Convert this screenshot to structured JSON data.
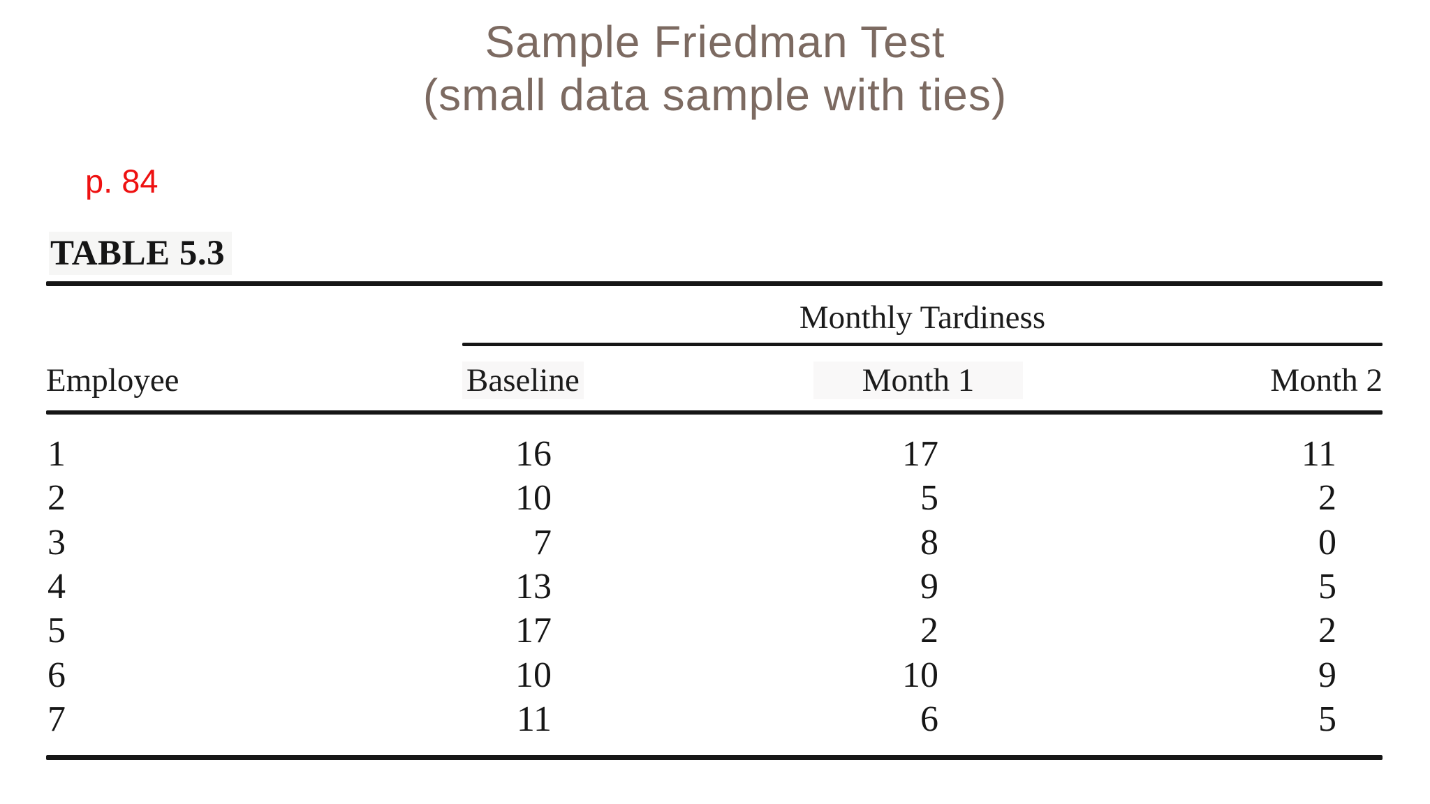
{
  "slide": {
    "title_line1": "Sample Friedman Test",
    "title_line2": "(small data sample with ties)",
    "page_ref": "p. 84"
  },
  "table": {
    "label": "TABLE 5.3",
    "span_header": "Monthly Tardiness",
    "columns": [
      "Employee",
      "Baseline",
      "Month 1",
      "Month 2"
    ],
    "rows": [
      [
        "1",
        "16",
        "17",
        "11"
      ],
      [
        "2",
        "10",
        "5",
        "2"
      ],
      [
        "3",
        "7",
        "8",
        "0"
      ],
      [
        "4",
        "13",
        "9",
        "5"
      ],
      [
        "5",
        "17",
        "2",
        "2"
      ],
      [
        "6",
        "10",
        "10",
        "9"
      ],
      [
        "7",
        "11",
        "6",
        "5"
      ]
    ]
  },
  "colors": {
    "title_brown": "#7c6a61",
    "page_ref_red": "#ee1111",
    "table_ink": "#1b1b1b",
    "background": "#ffffff"
  },
  "chart_data": {
    "type": "table",
    "title": "TABLE 5.3 — Monthly Tardiness (Sample Friedman Test, small data sample with ties)",
    "columns": [
      "Employee",
      "Baseline",
      "Month 1",
      "Month 2"
    ],
    "rows": [
      [
        1,
        16,
        17,
        11
      ],
      [
        2,
        10,
        5,
        2
      ],
      [
        3,
        7,
        8,
        0
      ],
      [
        4,
        13,
        9,
        5
      ],
      [
        5,
        17,
        2,
        2
      ],
      [
        6,
        10,
        10,
        9
      ],
      [
        7,
        11,
        6,
        5
      ]
    ]
  }
}
